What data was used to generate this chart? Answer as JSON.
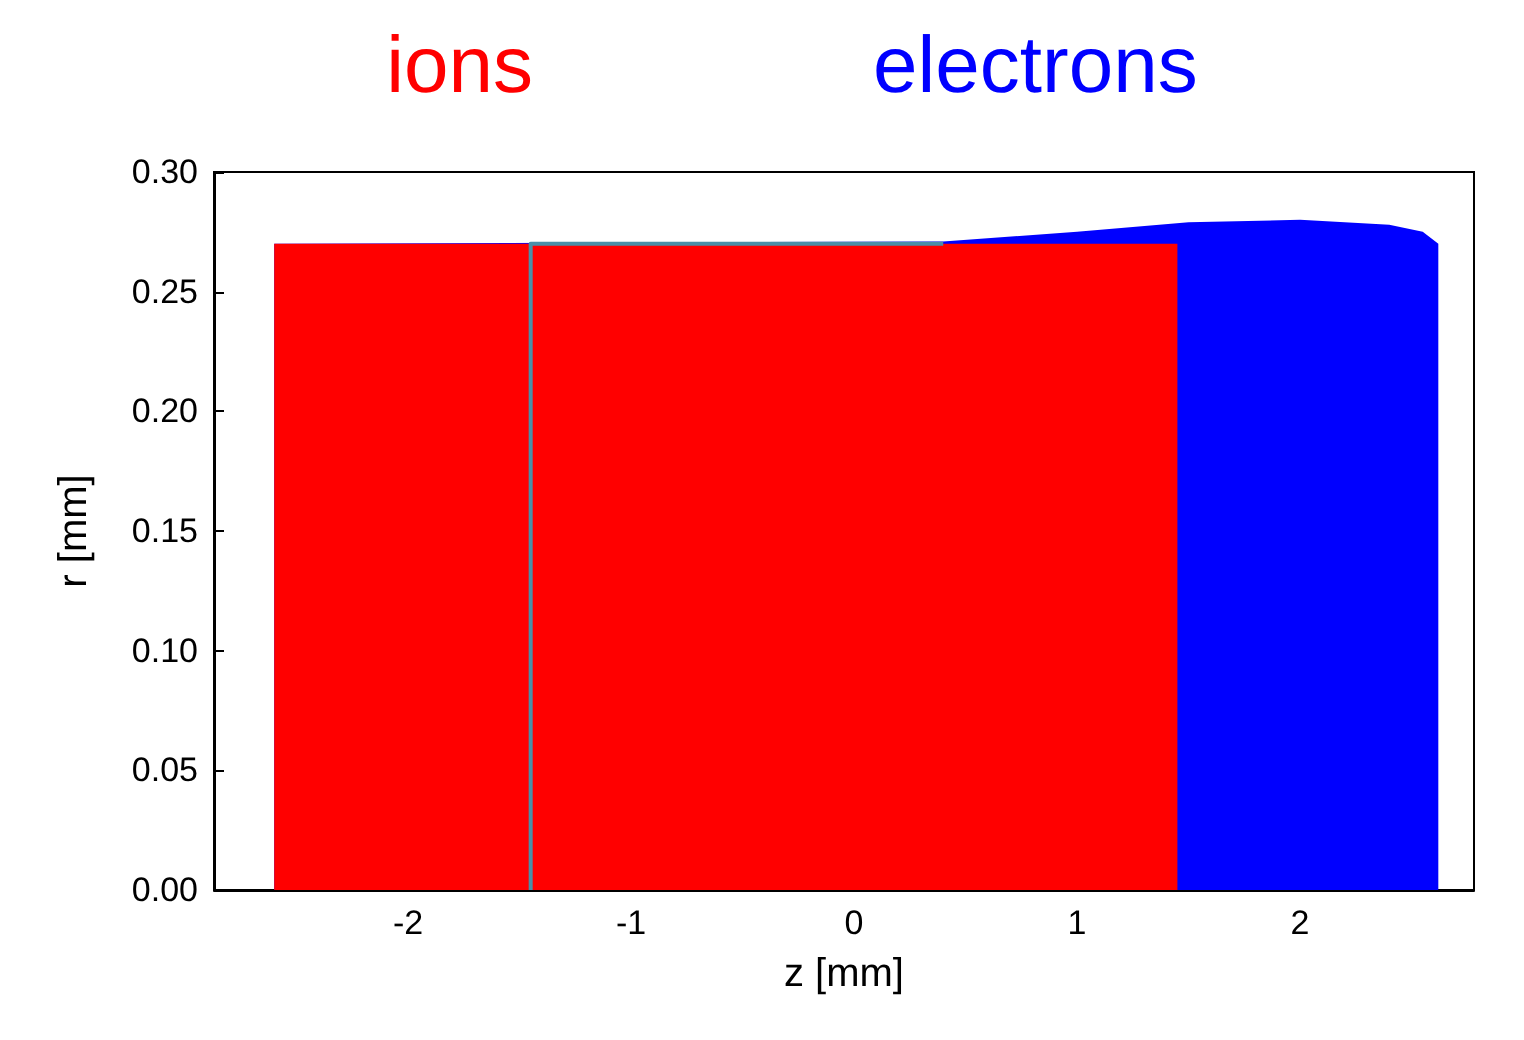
{
  "chart_data": {
    "type": "area",
    "xlabel": "z [mm]",
    "ylabel": "r [mm]",
    "xlim": [
      -2.87,
      2.78
    ],
    "xticks": [
      -2,
      -1,
      0,
      1,
      2
    ],
    "ylim": [
      0,
      0.3
    ],
    "yticks": [
      {
        "value": 0,
        "label": "0.00"
      },
      {
        "value": 0.05,
        "label": "0.05"
      },
      {
        "value": 0.1,
        "label": "0.10"
      },
      {
        "value": 0.15,
        "label": "0.15"
      },
      {
        "value": 0.2,
        "label": "0.20"
      },
      {
        "value": 0.25,
        "label": "0.25"
      },
      {
        "value": 0.3,
        "label": "0.30"
      }
    ],
    "grid": false,
    "legend": "top",
    "series": [
      {
        "name": "electrons",
        "color": "#0000ff",
        "x": [
          -2.6,
          0.4,
          1.0,
          1.5,
          2.0,
          2.4,
          2.55,
          2.62
        ],
        "values": [
          0.27,
          0.271,
          0.275,
          0.279,
          0.28,
          0.278,
          0.275,
          0.27
        ]
      },
      {
        "name": "ions",
        "color": "#ff0000",
        "x": [
          -2.6,
          1.45
        ],
        "values": [
          0.27,
          0.27
        ]
      },
      {
        "type": "line",
        "color": "#4a8fa8",
        "x": [
          -1.45,
          -1.45,
          0.4
        ],
        "values": [
          0,
          0.27,
          0.27
        ]
      }
    ]
  }
}
